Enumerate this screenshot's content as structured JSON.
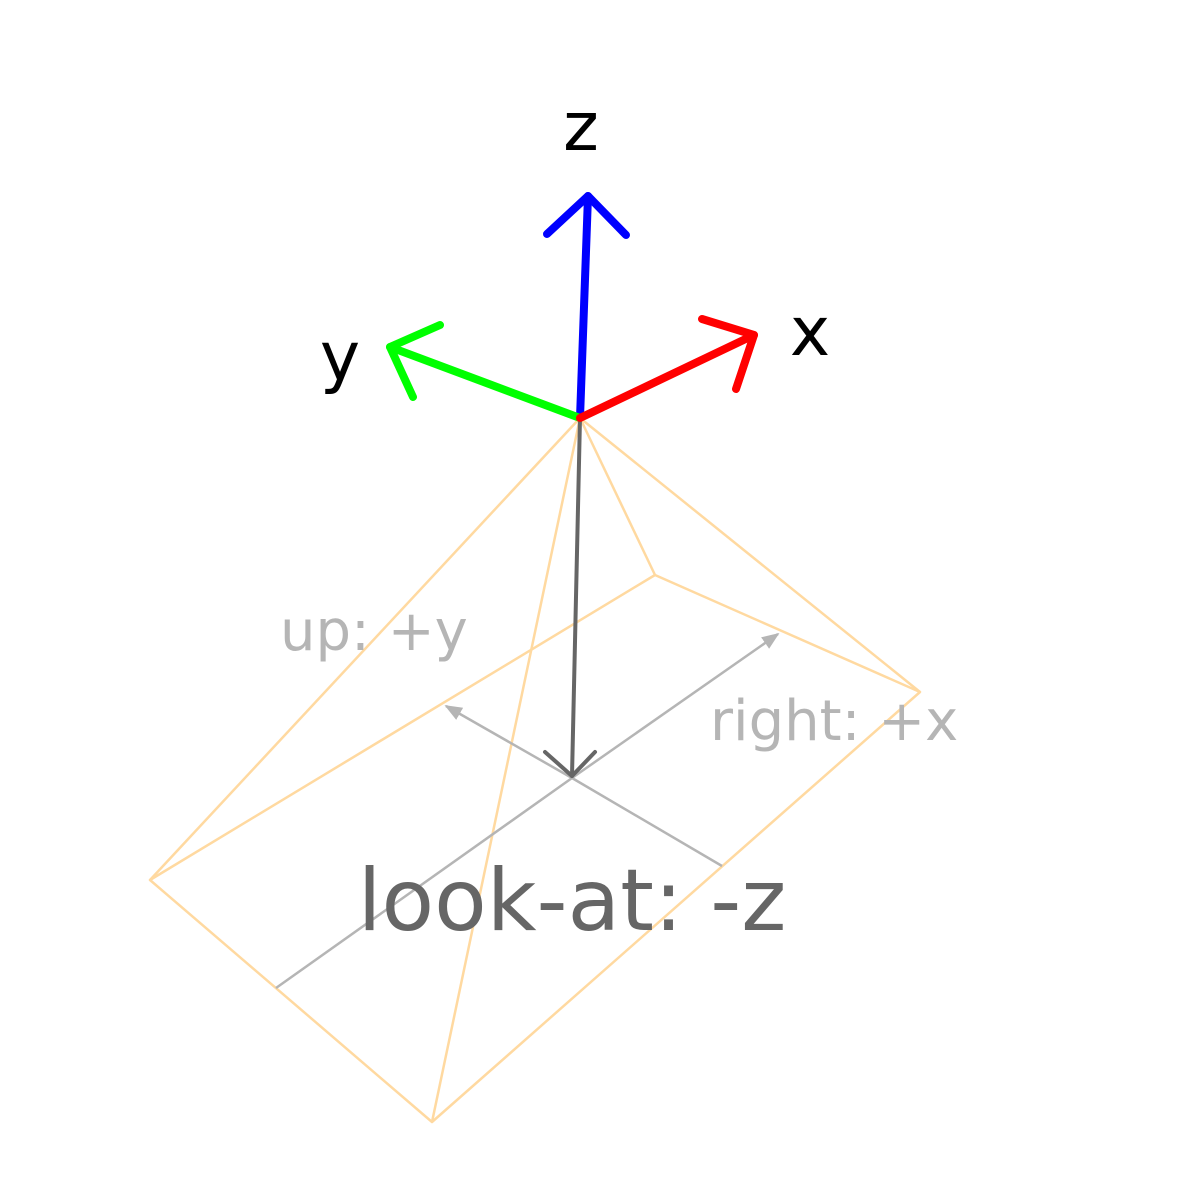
{
  "axes": {
    "x": {
      "label": "x",
      "color": "#ff0000"
    },
    "y": {
      "label": "y",
      "color": "#00ff00"
    },
    "z": {
      "label": "z",
      "color": "#0000ff"
    }
  },
  "frustum": {
    "color": "#ffd9a0"
  },
  "camera": {
    "up_label": "up: +y",
    "right_label": "right: +x",
    "look_label": "look-at: -z",
    "guide_color": "#bbbbbb",
    "look_color": "#666666"
  }
}
